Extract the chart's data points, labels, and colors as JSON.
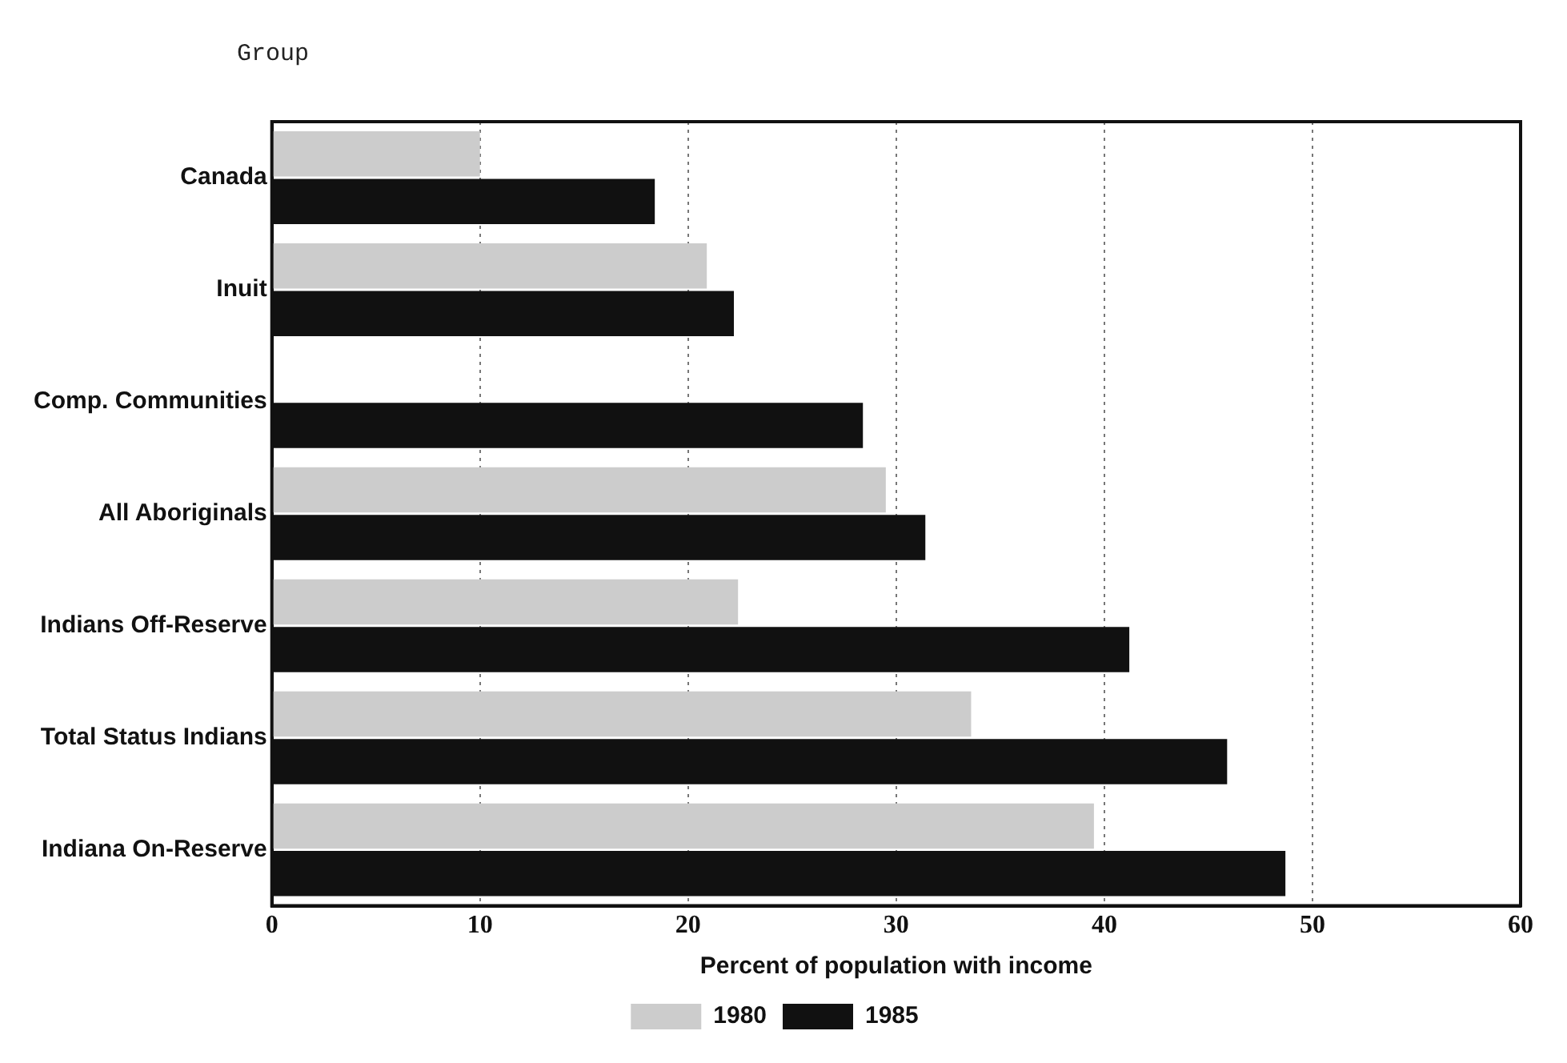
{
  "chart_data": {
    "type": "bar",
    "orientation": "horizontal",
    "ylabel": "Group",
    "xlabel": "Percent of population with income",
    "categories": [
      "Canada",
      "Inuit",
      "Comp. Communities",
      "All Aboriginals",
      "Indians Off-Reserve",
      "Total Status Indians",
      "Indiana On-Reserve"
    ],
    "series": [
      {
        "name": "1980",
        "color": "#cccccc",
        "values": [
          10.0,
          20.9,
          null,
          29.5,
          22.4,
          33.6,
          39.5
        ]
      },
      {
        "name": "1985",
        "color": "#111111",
        "values": [
          18.4,
          22.2,
          28.4,
          31.4,
          41.2,
          45.9,
          48.7
        ]
      }
    ],
    "xlim": [
      0,
      60
    ],
    "xticks": [
      0,
      10,
      20,
      30,
      40,
      50,
      60
    ],
    "grid": "x",
    "legend": "bottom"
  }
}
